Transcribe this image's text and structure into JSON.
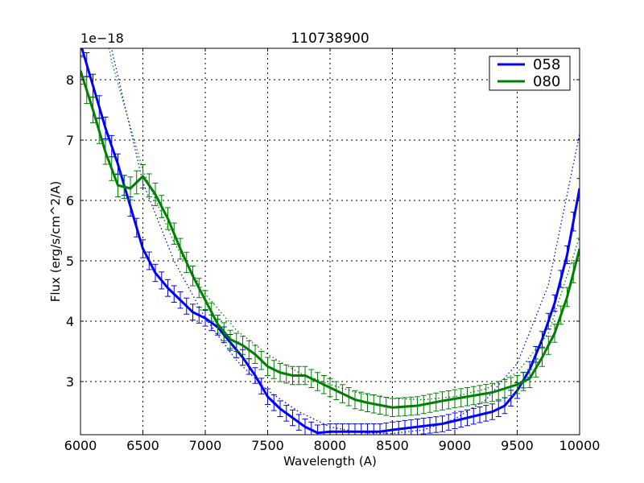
{
  "chart_data": {
    "type": "line",
    "title": "110738900",
    "xlabel": "Wavelength (A)",
    "ylabel": "Flux (erg/s/cm^2/A)",
    "y_offset_label": "1e−18",
    "xlim": [
      6000,
      10000
    ],
    "ylim": [
      2.12,
      8.52
    ],
    "xticks": [
      6000,
      6500,
      7000,
      7500,
      8000,
      8500,
      9000,
      9500,
      10000
    ],
    "yticks": [
      3,
      4,
      5,
      6,
      7,
      8
    ],
    "grid": true,
    "legend_position": "upper right",
    "series": [
      {
        "name": "058",
        "color": "#0000ff",
        "x": [
          6000,
          6100,
          6200,
          6300,
          6400,
          6500,
          6600,
          6700,
          6800,
          6900,
          7000,
          7100,
          7200,
          7300,
          7400,
          7500,
          7600,
          7700,
          7800,
          7900,
          8000,
          8200,
          8400,
          8500,
          8700,
          8900,
          9000,
          9200,
          9300,
          9400,
          9500,
          9600,
          9700,
          9800,
          9900,
          10000
        ],
        "y": [
          8.6,
          7.9,
          7.2,
          6.6,
          5.9,
          5.2,
          4.8,
          4.55,
          4.35,
          4.15,
          4.05,
          3.9,
          3.65,
          3.4,
          3.1,
          2.75,
          2.55,
          2.4,
          2.25,
          2.15,
          2.17,
          2.17,
          2.17,
          2.2,
          2.25,
          2.3,
          2.35,
          2.45,
          2.5,
          2.6,
          2.85,
          3.2,
          3.7,
          4.3,
          5.1,
          6.2
        ],
        "error": 0.13,
        "fit_x": [
          6000,
          6250,
          6500,
          6750,
          7000,
          7250,
          7500,
          7750,
          8000,
          8250,
          8500,
          8750,
          9000,
          9250,
          9500,
          9750,
          10000
        ],
        "fit_y": [
          11.5,
          8.5,
          6.3,
          5.0,
          4.05,
          3.35,
          2.85,
          2.5,
          2.25,
          2.15,
          2.14,
          2.2,
          2.38,
          2.7,
          3.3,
          4.6,
          7.1
        ]
      },
      {
        "name": "080",
        "color": "#008000",
        "x": [
          6000,
          6100,
          6200,
          6300,
          6400,
          6500,
          6600,
          6700,
          6800,
          6900,
          7000,
          7100,
          7200,
          7300,
          7400,
          7500,
          7600,
          7700,
          7800,
          7900,
          8000,
          8100,
          8200,
          8300,
          8500,
          8700,
          8900,
          9100,
          9300,
          9500,
          9600,
          9700,
          9800,
          9900,
          10000
        ],
        "y": [
          8.15,
          7.5,
          6.8,
          6.25,
          6.2,
          6.4,
          6.1,
          5.7,
          5.2,
          4.75,
          4.35,
          3.95,
          3.7,
          3.6,
          3.45,
          3.25,
          3.15,
          3.1,
          3.1,
          3.0,
          2.9,
          2.8,
          2.7,
          2.65,
          2.57,
          2.6,
          2.68,
          2.75,
          2.82,
          2.95,
          3.05,
          3.4,
          3.8,
          4.4,
          5.2
        ],
        "error": 0.15,
        "fit_x": [
          6000,
          6250,
          6500,
          6750,
          7000,
          7250,
          7500,
          7750,
          8000,
          8250,
          8500,
          8750,
          9000,
          9250,
          9500,
          9750,
          10000
        ],
        "fit_y": [
          11.0,
          8.3,
          6.5,
          5.3,
          4.45,
          3.85,
          3.45,
          3.15,
          2.95,
          2.8,
          2.72,
          2.7,
          2.75,
          2.88,
          3.15,
          3.8,
          5.4
        ]
      }
    ]
  }
}
